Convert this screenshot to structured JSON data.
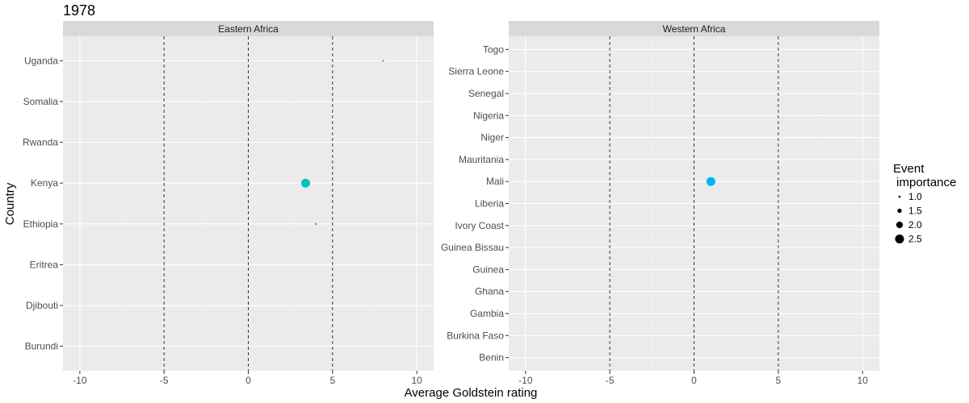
{
  "chart_data": {
    "type": "scatter",
    "title": "1978",
    "xlabel": "Average Goldstein rating",
    "ylabel": "Country",
    "xlim": [
      -11,
      11
    ],
    "x_ticks": [
      -10,
      -5,
      0,
      5,
      10
    ],
    "x_tick_labels": [
      "-10",
      "-5",
      "0",
      "5",
      "10"
    ],
    "reference_lines_x": [
      -5,
      0,
      5
    ],
    "grid": true,
    "legend_position": "right",
    "legend": {
      "title_line1": "Event",
      "title_line2": " importance",
      "items": [
        {
          "label": "1.0",
          "size": 1.0
        },
        {
          "label": "1.5",
          "size": 1.5
        },
        {
          "label": "2.0",
          "size": 2.0
        },
        {
          "label": "2.5",
          "size": 2.5
        }
      ]
    },
    "panels": [
      {
        "name": "Eastern Africa",
        "categories": [
          "Burundi",
          "Djibouti",
          "Eritrea",
          "Ethiopia",
          "Kenya",
          "Rwanda",
          "Somalia",
          "Uganda"
        ],
        "points": [
          {
            "country": "Uganda",
            "x": 8.0,
            "importance": 1.0,
            "color": "#F8766D"
          },
          {
            "country": "Kenya",
            "x": 3.4,
            "importance": 2.5,
            "color": "#00BFC4"
          },
          {
            "country": "Ethiopia",
            "x": 4.0,
            "importance": 1.0,
            "color": "#7CAE00"
          }
        ]
      },
      {
        "name": "Western Africa",
        "categories": [
          "Benin",
          "Burkina Faso",
          "Gambia",
          "Ghana",
          "Guinea",
          "Guinea Bissau",
          "Ivory Coast",
          "Liberia",
          "Mali",
          "Mauritania",
          "Niger",
          "Nigeria",
          "Senegal",
          "Sierra Leone",
          "Togo"
        ],
        "points": [
          {
            "country": "Mali",
            "x": 1.0,
            "importance": 2.5,
            "color": "#00B4F0"
          }
        ]
      }
    ],
    "colors": {
      "panel_bg": "#EBEBEB",
      "strip_bg": "#D9D9D9",
      "grid_major": "#FFFFFF",
      "grid_minor": "#F2F2F2",
      "ref_line": "#333333"
    }
  }
}
